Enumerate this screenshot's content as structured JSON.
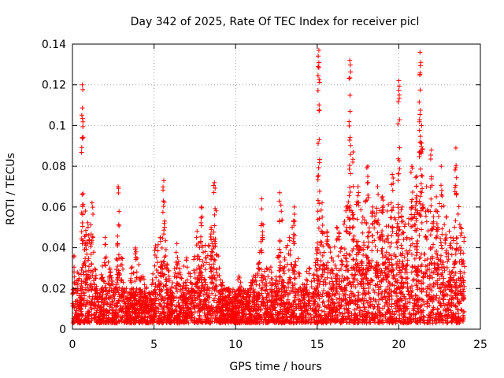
{
  "chart_data": {
    "type": "scatter",
    "title": "Day 342 of 2025, Rate Of TEC Index for receiver picl",
    "xlabel": "GPS time / hours",
    "ylabel": "ROTI / TECUs",
    "xlim": [
      0,
      25
    ],
    "ylim": [
      0,
      0.14
    ],
    "xticks": [
      0,
      5,
      10,
      15,
      20,
      25
    ],
    "xtick_labels": [
      "0",
      "5",
      "10",
      "15",
      "20",
      "25"
    ],
    "yticks": [
      0,
      0.02,
      0.04,
      0.06,
      0.08,
      0.1,
      0.12,
      0.14
    ],
    "ytick_labels": [
      "0",
      "0.02",
      "0.04",
      "0.06",
      "0.08",
      "0.1",
      "0.12",
      "0.14"
    ],
    "grid": true,
    "marker": "plus",
    "color": "#ff0000",
    "series": [
      {
        "name": "ROTI",
        "x": [
          0.1,
          0.3,
          0.5,
          0.6,
          0.8,
          1.0,
          1.2,
          1.5,
          1.8,
          2.0,
          2.3,
          2.6,
          2.8,
          3.0,
          3.3,
          3.6,
          3.9,
          4.2,
          4.5,
          4.8,
          5.1,
          5.4,
          5.6,
          5.8,
          6.1,
          6.4,
          6.7,
          7.0,
          7.3,
          7.6,
          7.9,
          8.2,
          8.5,
          8.7,
          9.0,
          9.3,
          9.6,
          9.9,
          10.2,
          10.5,
          10.8,
          11.1,
          11.4,
          11.6,
          11.9,
          12.2,
          12.5,
          12.7,
          13.0,
          13.3,
          13.6,
          13.9,
          14.2,
          14.5,
          14.8,
          15.0,
          15.1,
          15.3,
          15.6,
          15.9,
          16.2,
          16.5,
          16.8,
          17.0,
          17.2,
          17.5,
          17.8,
          18.1,
          18.4,
          18.7,
          19.0,
          19.3,
          19.6,
          19.9,
          20.0,
          20.2,
          20.5,
          20.8,
          21.1,
          21.3,
          21.4,
          21.7,
          22.0,
          22.3,
          22.6,
          22.9,
          23.2,
          23.5,
          23.8,
          24.0
        ],
        "y": [
          0.036,
          0.028,
          0.02,
          0.12,
          0.058,
          0.046,
          0.062,
          0.018,
          0.025,
          0.045,
          0.03,
          0.012,
          0.07,
          0.035,
          0.02,
          0.03,
          0.038,
          0.025,
          0.02,
          0.015,
          0.04,
          0.045,
          0.073,
          0.032,
          0.018,
          0.042,
          0.025,
          0.035,
          0.02,
          0.045,
          0.06,
          0.035,
          0.05,
          0.072,
          0.03,
          0.015,
          0.02,
          0.012,
          0.026,
          0.016,
          0.018,
          0.024,
          0.03,
          0.064,
          0.03,
          0.028,
          0.024,
          0.067,
          0.035,
          0.045,
          0.06,
          0.026,
          0.02,
          0.03,
          0.025,
          0.04,
          0.137,
          0.062,
          0.048,
          0.035,
          0.05,
          0.04,
          0.06,
          0.132,
          0.087,
          0.07,
          0.055,
          0.08,
          0.06,
          0.07,
          0.065,
          0.058,
          0.076,
          0.05,
          0.122,
          0.06,
          0.045,
          0.08,
          0.075,
          0.136,
          0.1,
          0.07,
          0.088,
          0.065,
          0.08,
          0.055,
          0.045,
          0.089,
          0.05,
          0.045
        ]
      }
    ],
    "baseline_band": {
      "note": "dense noise floor of points spanning entire x range",
      "y_range": [
        0.003,
        0.02
      ]
    }
  }
}
